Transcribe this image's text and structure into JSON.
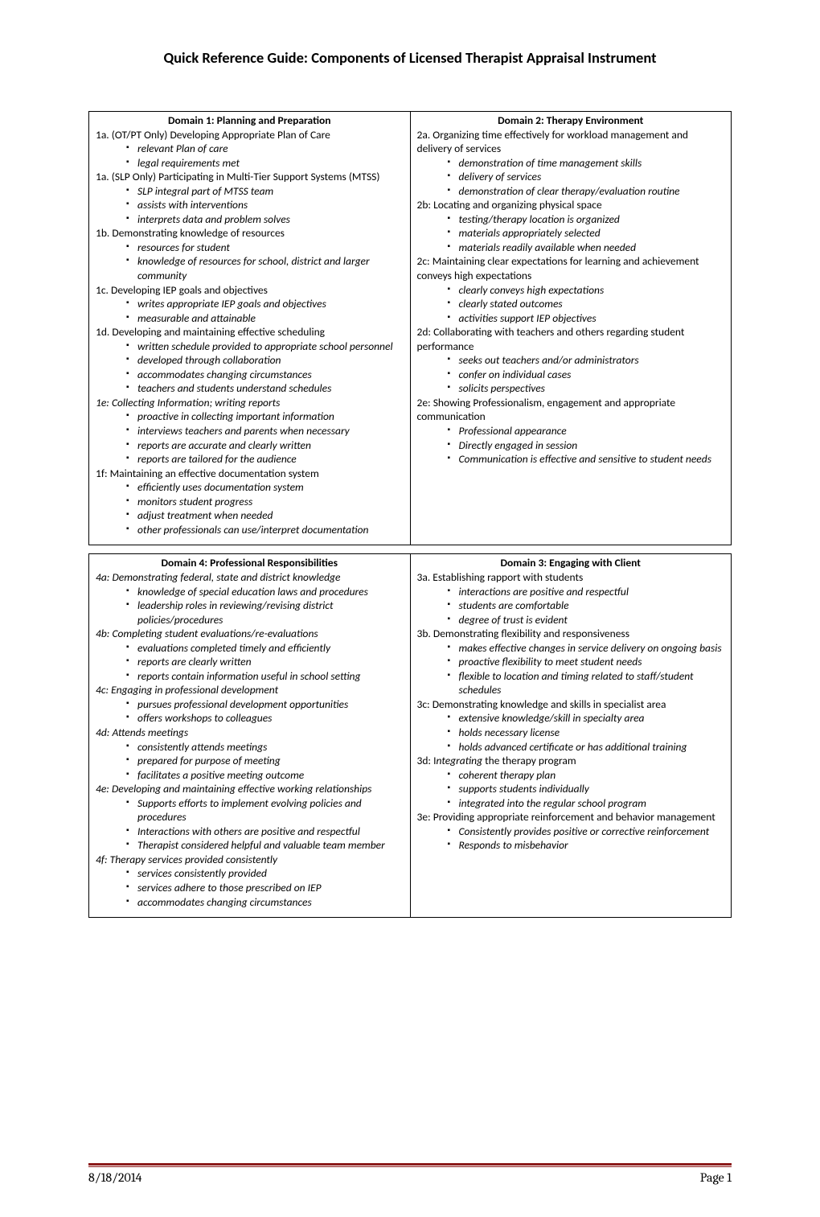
{
  "page_title": "Quick Reference Guide:  Components of Licensed Therapist Appraisal Instrument",
  "footer_date": "8/18/2014",
  "footer_page": "Page 1",
  "domains": {
    "d1": {
      "title": "Domain 1:  Planning and Preparation",
      "c1": "1a.  (OT/PT Only) Developing Appropriate Plan of Care",
      "c1_b1": "relevant Plan of care",
      "c1_b2": "legal requirements met",
      "c2": "1a.  (SLP Only) Participating in Multi-Tier Support Systems (MTSS)",
      "c2_b1": "SLP integral part of MTSS team",
      "c2_b2": "assists with interventions",
      "c2_b3": "interprets data and problem solves",
      "c3": "1b.  Demonstrating knowledge of resources",
      "c3_b1": "resources for student",
      "c3_b2": "knowledge of resources for school, district and larger community",
      "c4": "1c.  Developing IEP goals and objectives",
      "c4_b1": "writes appropriate IEP goals and objectives",
      "c4_b2": "measurable and  attainable",
      "c5": "1d.  Developing and maintaining effective scheduling",
      "c5_b1": "written schedule provided to  appropriate school personnel",
      "c5_b2": "developed through collaboration",
      "c5_b3": "accommodates changing circumstances",
      "c5_b4": "teachers and students understand schedules",
      "c6": "1e:  Collecting Information; writing reports",
      "c6_b1": "proactive in collecting important information",
      "c6_b2": "interviews teachers and parents when necessary",
      "c6_b3": "reports are accurate and clearly written",
      "c6_b4": "reports are tailored for the audience",
      "c7": "1f:  Maintaining an effective documentation system",
      "c7_b1": "efficiently uses documentation system",
      "c7_b2": "monitors student progress",
      "c7_b3": "adjust treatment when needed",
      "c7_b4": "other professionals can use/interpret documentation"
    },
    "d2": {
      "title": "Domain 2:  Therapy Environment",
      "c1": "2a.  Organizing time effectively for workload management and delivery of services",
      "c1_b1": "demonstration of time management skills",
      "c1_b2": "delivery of services",
      "c1_b3": "demonstration of clear therapy/evaluation routine",
      "c2": "2b:  Locating and organizing physical space",
      "c2_b1": "testing/therapy location is organized",
      "c2_b2": "materials appropriately selected",
      "c2_b3": "materials readily available when needed",
      "c3": "2c:  Maintaining clear expectations for learning and achievement conveys high expectations",
      "c3_b1": "clearly conveys high expectations",
      "c3_b2": "clearly stated outcomes",
      "c3_b3": "activities support IEP objectives",
      "c4": "2d:  Collaborating with teachers and others regarding student performance",
      "c4_b1": "seeks out teachers and/or administrators",
      "c4_b2": "confer on individual cases",
      "c4_b3": "solicits perspectives",
      "c5": "2e:  Showing Professionalism, engagement and appropriate communication",
      "c5_b1": "Professional appearance",
      "c5_b2": "Directly engaged in session",
      "c5_b3": "Communication is effective and sensitive to student needs"
    },
    "d4": {
      "title": "Domain 4: Professional Responsibilities",
      "c1": "4a:  Demonstrating federal, state and district knowledge",
      "c1_b1": "knowledge of special education laws and procedures",
      "c1_b2": "leadership roles in reviewing/revising district policies/procedures",
      "c2": "4b:  Completing student evaluations/re-evaluations",
      "c2_b1": "evaluations completed timely and efficiently",
      "c2_b2": "reports are clearly written",
      "c2_b3": "reports contain information useful in school setting",
      "c3": "4c:  Engaging in professional development",
      "c3_b1": "pursues professional development opportunities",
      "c3_b2": "offers workshops to colleagues",
      "c4": "4d:  Attends meetings",
      "c4_b1": "consistently attends meetings",
      "c4_b2": "prepared for purpose of meeting",
      "c4_b3": "facilitates a positive meeting outcome",
      "c5": "4e:  Developing and maintaining effective working relationships",
      "c5_b1": "Supports efforts to implement evolving policies and procedures",
      "c5_b2": "Interactions with others are positive and respectful",
      "c5_b3": "Therapist considered helpful and valuable team member",
      "c6": "4f:  Therapy services provided consistently",
      "c6_b1": "services consistently provided",
      "c6_b2": "services adhere to those prescribed on IEP",
      "c6_b3": "accommodates changing circumstances"
    },
    "d3": {
      "title": "Domain 3:  Engaging with Client",
      "c1": "3a.  Establishing rapport with students",
      "c1_b1": "interactions are positive and respectful",
      "c1_b2": "students are comfortable",
      "c1_b3": "degree of trust is evident",
      "c2": "3b.  Demonstrating flexibility and responsiveness",
      "c2_b1": "makes effective changes in service delivery on ongoing basis",
      "c2_b2": "proactive flexibility to meet student needs",
      "c2_b3": "flexible to location and timing related to staff/student schedules",
      "c3": "3c:  Demonstrating knowledge and skills in specialist area",
      "c3_b1": "extensive knowledge/skill in specialty area",
      "c3_b2": "holds necessary license",
      "c3_b3": "holds advanced certificate or has additional training",
      "c4_pre": "3d:  I",
      "c4_mid": "ntegrating ",
      "c4_post": " the therapy program",
      "c4_b1": "coherent therapy plan",
      "c4_b2": "supports students individually",
      "c4_b3": "integrated into the regular school program",
      "c5": "3e:  Providing appropriate reinforcement and behavior management",
      "c5_b1": "Consistently provides positive or corrective reinforcement",
      "c5_b2": "Responds to misbehavior"
    }
  }
}
